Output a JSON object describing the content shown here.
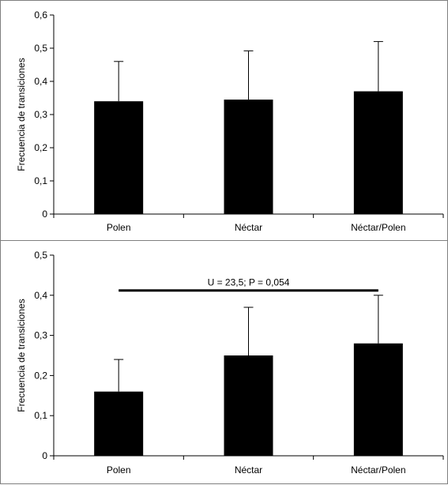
{
  "chart_data": [
    {
      "type": "bar",
      "categories": [
        "Polen",
        "Néctar",
        "Néctar/Polen"
      ],
      "values": [
        0.34,
        0.345,
        0.37
      ],
      "error": [
        0.12,
        0.147,
        0.15
      ],
      "ylabel": "Frecuencia de transiciones",
      "ylim": [
        0,
        0.6
      ],
      "yticks": [
        "0",
        "0,1",
        "0,2",
        "0,3",
        "0,4",
        "0,5",
        "0,6"
      ],
      "grid": false,
      "bar_color": "#000000"
    },
    {
      "type": "bar",
      "categories": [
        "Polen",
        "Néctar",
        "Néctar/Polen"
      ],
      "values": [
        0.16,
        0.25,
        0.28
      ],
      "error": [
        0.08,
        0.12,
        0.12
      ],
      "ylabel": "Frecuencia de transiciones",
      "ylim": [
        0,
        0.5
      ],
      "yticks": [
        "0",
        "0,1",
        "0,2",
        "0,3",
        "0,4",
        "0,5"
      ],
      "grid": false,
      "bar_color": "#000000",
      "annotation": {
        "text": "U = 23,5; P = 0,054",
        "from_category": 0,
        "to_category": 2,
        "y": 0.412
      }
    }
  ]
}
